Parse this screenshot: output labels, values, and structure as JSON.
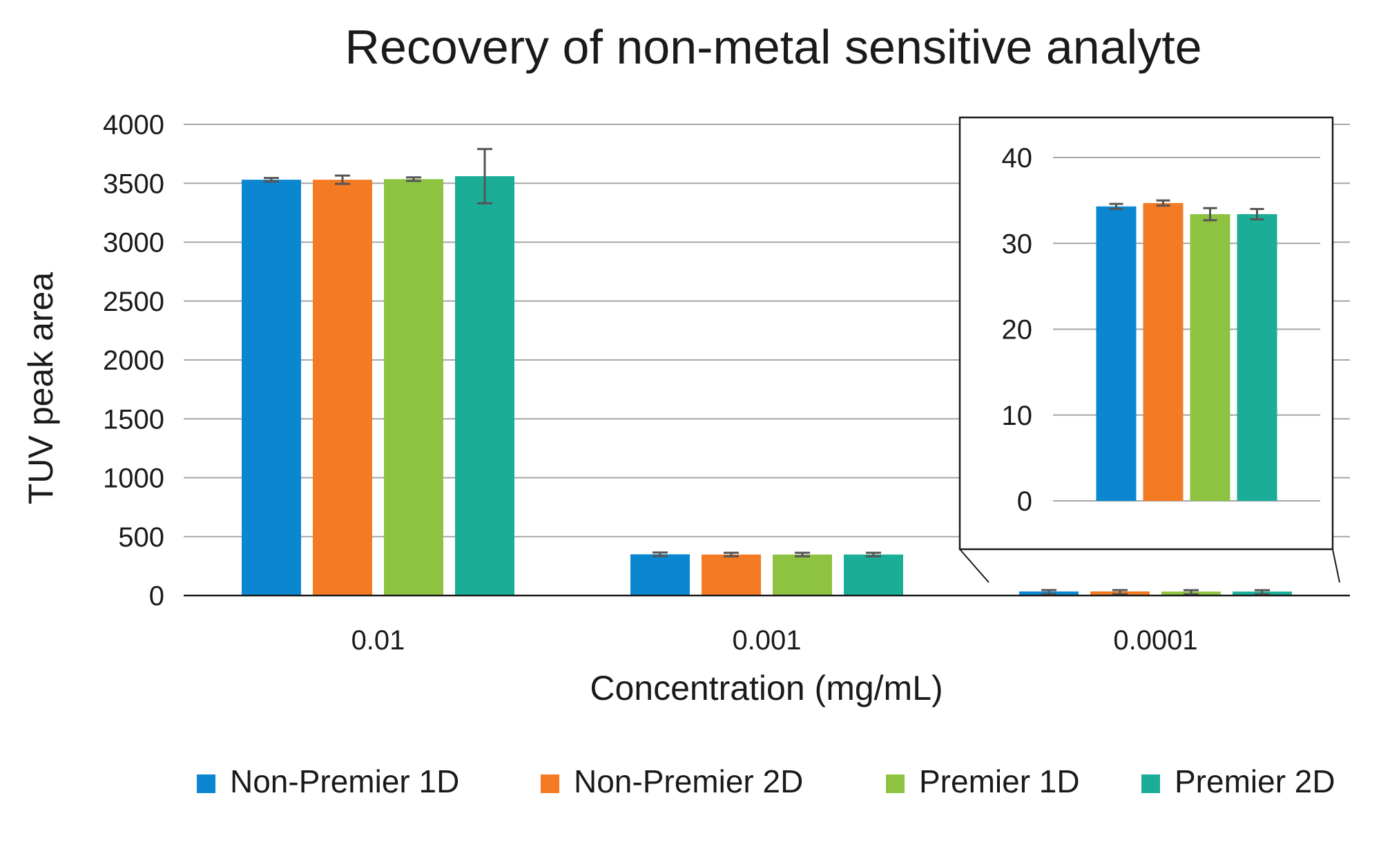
{
  "chart_data": {
    "type": "bar",
    "title": "Recovery of non-metal sensitive analyte",
    "xlabel": "Concentration (mg/mL)",
    "ylabel": "TUV peak area",
    "categories": [
      "0.01",
      "0.001",
      "0.0001"
    ],
    "ylim": [
      0,
      4000
    ],
    "yticks": [
      0,
      500,
      1000,
      1500,
      2000,
      2500,
      3000,
      3500,
      4000
    ],
    "grid": true,
    "legend_position": "bottom",
    "series": [
      {
        "name": "Non-Premier 1D",
        "color": "#0a87d0",
        "values": [
          3530,
          350,
          34.3
        ],
        "errors": [
          15,
          15,
          0.3
        ]
      },
      {
        "name": "Non-Premier 2D",
        "color": "#f47a23",
        "values": [
          3530,
          348,
          34.7
        ],
        "errors": [
          35,
          15,
          0.3
        ]
      },
      {
        "name": "Premier 1D",
        "color": "#8dc341",
        "values": [
          3535,
          348,
          33.4
        ],
        "errors": [
          15,
          15,
          0.7
        ]
      },
      {
        "name": "Premier 2D",
        "color": "#1aad97",
        "values": [
          3560,
          348,
          33.4
        ],
        "errors": [
          230,
          15,
          0.6
        ]
      }
    ],
    "inset": {
      "category": "0.0001",
      "ylim": [
        0,
        40
      ],
      "yticks": [
        0,
        10,
        20,
        30,
        40
      ]
    }
  }
}
